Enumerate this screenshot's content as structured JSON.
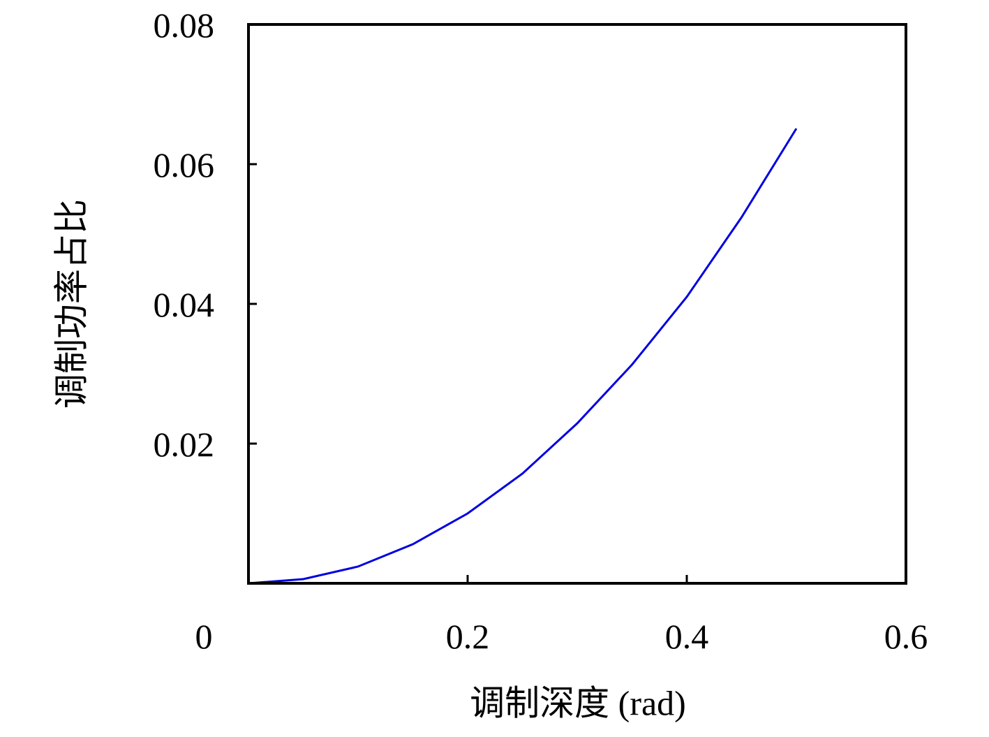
{
  "chart_data": {
    "type": "line",
    "x_label": "调制深度 (rad)",
    "y_label": "调制功率占比",
    "x": [
      0,
      0.05,
      0.1,
      0.15,
      0.2,
      0.25,
      0.3,
      0.35,
      0.4,
      0.45,
      0.5
    ],
    "series": [
      {
        "name": "调制功率占比",
        "color": "#0000e0",
        "values": [
          0,
          0.0006,
          0.0024,
          0.0056,
          0.01,
          0.0157,
          0.0229,
          0.0313,
          0.041,
          0.0524,
          0.0651
        ]
      }
    ],
    "xlim": [
      0,
      0.6
    ],
    "xticks": [
      0,
      0.2,
      0.4,
      0.6
    ],
    "ylim": [
      0,
      0.08
    ],
    "yticks": [
      0.02,
      0.04,
      0.06,
      0.08
    ]
  }
}
